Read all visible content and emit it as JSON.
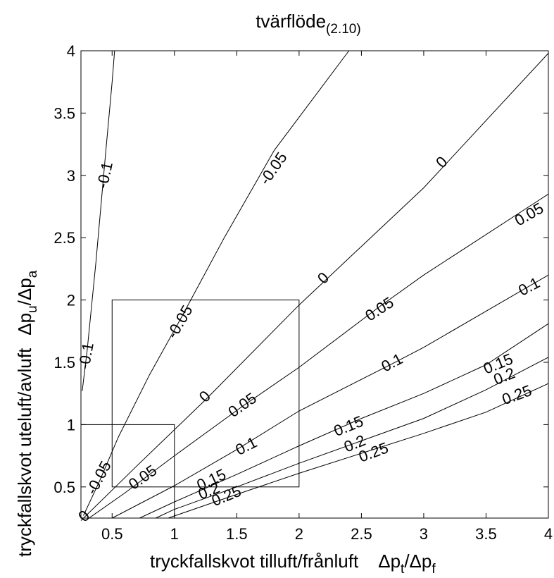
{
  "chart_data": {
    "type": "contour",
    "title": {
      "main": "tvärflöde",
      "sub": "(2.10)"
    },
    "xlabel": {
      "text": "tryckfallskvot tilluft/frånluft",
      "sym_a": "Δp",
      "sub_a": "t",
      "slash": "/",
      "sym_b": "Δp",
      "sub_b": "f"
    },
    "ylabel": {
      "text": "tryckfallskvot uteluft/avluft",
      "sym_a": "Δp",
      "sub_a": "u",
      "slash": "/",
      "sym_b": "Δp",
      "sub_b": "a"
    },
    "xlim": [
      0.25,
      4
    ],
    "ylim": [
      0.25,
      4
    ],
    "xticks": [
      0.5,
      1,
      1.5,
      2,
      2.5,
      3,
      3.5,
      4
    ],
    "xtick_labels": [
      "0.5",
      "1",
      "1.5",
      "2",
      "2.5",
      "3",
      "3.5",
      "4"
    ],
    "yticks": [
      0.5,
      1,
      1.5,
      2,
      2.5,
      3,
      3.5,
      4
    ],
    "ytick_labels": [
      "0.5",
      "1",
      "1.5",
      "2",
      "2.5",
      "3",
      "3.5",
      "4"
    ],
    "grid": false,
    "contours": [
      {
        "level": "-0.1",
        "points": [
          [
            0.26,
            1.27
          ],
          [
            0.3,
            1.6
          ],
          [
            0.37,
            2.3
          ],
          [
            0.45,
            3.2
          ],
          [
            0.5,
            3.75
          ],
          [
            0.52,
            4.0
          ]
        ],
        "labels": [
          {
            "text": "-0.1",
            "x": 0.3,
            "y": 1.55,
            "angle": -80
          },
          {
            "text": "-0.1",
            "x": 0.45,
            "y": 3.0,
            "angle": -78
          }
        ]
      },
      {
        "level": "-0.05",
        "points": [
          [
            0.27,
            0.27
          ],
          [
            0.4,
            0.55
          ],
          [
            0.55,
            0.9
          ],
          [
            0.8,
            1.4
          ],
          [
            1.05,
            1.85
          ],
          [
            1.4,
            2.5
          ],
          [
            1.8,
            3.2
          ],
          [
            2.4,
            4.0
          ]
        ],
        "labels": [
          {
            "text": "-0.05",
            "x": 0.4,
            "y": 0.57,
            "angle": -62
          },
          {
            "text": "-0.05",
            "x": 1.05,
            "y": 1.82,
            "angle": -60
          },
          {
            "text": "-0.05",
            "x": 1.8,
            "y": 3.05,
            "angle": -55
          }
        ]
      },
      {
        "level": "0",
        "points": [
          [
            0.25,
            0.23
          ],
          [
            0.7,
            0.67
          ],
          [
            1.25,
            1.2
          ],
          [
            2.0,
            1.96
          ],
          [
            3.0,
            2.9
          ],
          [
            4.0,
            3.98
          ]
        ],
        "labels": [
          {
            "text": "0",
            "x": 0.28,
            "y": 0.26,
            "angle": -45
          },
          {
            "text": "0",
            "x": 1.25,
            "y": 1.22,
            "angle": -45
          },
          {
            "text": "0",
            "x": 2.2,
            "y": 2.17,
            "angle": -45
          },
          {
            "text": "0",
            "x": 3.15,
            "y": 3.1,
            "angle": -45
          }
        ]
      },
      {
        "level": "0.05",
        "points": [
          [
            0.3,
            0.24
          ],
          [
            0.6,
            0.45
          ],
          [
            1.0,
            0.75
          ],
          [
            1.55,
            1.15
          ],
          [
            2.0,
            1.46
          ],
          [
            2.65,
            1.95
          ],
          [
            3.0,
            2.2
          ],
          [
            4.0,
            2.85
          ]
        ],
        "labels": [
          {
            "text": "0.05",
            "x": 0.75,
            "y": 0.57,
            "angle": -35
          },
          {
            "text": "0.05",
            "x": 1.55,
            "y": 1.15,
            "angle": -35
          },
          {
            "text": "0.05",
            "x": 2.65,
            "y": 1.92,
            "angle": -33
          },
          {
            "text": "0.05",
            "x": 3.85,
            "y": 2.68,
            "angle": -30
          }
        ]
      },
      {
        "level": "0.1",
        "points": [
          [
            0.5,
            0.25
          ],
          [
            1.0,
            0.51
          ],
          [
            1.5,
            0.8
          ],
          [
            2.0,
            1.11
          ],
          [
            2.75,
            1.49
          ],
          [
            3.0,
            1.62
          ],
          [
            4.0,
            2.2
          ]
        ],
        "labels": [
          {
            "text": "0.1",
            "x": 1.58,
            "y": 0.82,
            "angle": -27
          },
          {
            "text": "0.1",
            "x": 2.75,
            "y": 1.49,
            "angle": -28
          },
          {
            "text": "0.1",
            "x": 3.85,
            "y": 2.1,
            "angle": -28
          }
        ]
      },
      {
        "level": "0.15",
        "points": [
          [
            0.72,
            0.25
          ],
          [
            1.0,
            0.38
          ],
          [
            1.5,
            0.6
          ],
          [
            2.0,
            0.83
          ],
          [
            2.5,
            1.05
          ],
          [
            3.0,
            1.25
          ],
          [
            3.5,
            1.48
          ],
          [
            4.0,
            1.81
          ]
        ],
        "labels": [
          {
            "text": "0.15",
            "x": 1.3,
            "y": 0.55,
            "angle": -25
          },
          {
            "text": "0.15",
            "x": 2.4,
            "y": 0.98,
            "angle": -22
          },
          {
            "text": "0.15",
            "x": 3.6,
            "y": 1.48,
            "angle": -22
          }
        ]
      },
      {
        "level": "0.2",
        "points": [
          [
            0.85,
            0.25
          ],
          [
            1.0,
            0.32
          ],
          [
            1.5,
            0.5
          ],
          [
            2.0,
            0.69
          ],
          [
            2.5,
            0.87
          ],
          [
            3.0,
            1.05
          ],
          [
            3.5,
            1.28
          ],
          [
            4.0,
            1.54
          ]
        ],
        "labels": [
          {
            "text": "0.2",
            "x": 1.28,
            "y": 0.46,
            "angle": -22
          },
          {
            "text": "0.2",
            "x": 2.45,
            "y": 0.84,
            "angle": -22
          },
          {
            "text": "0.2",
            "x": 3.65,
            "y": 1.38,
            "angle": -22
          }
        ]
      },
      {
        "level": "0.25",
        "points": [
          [
            0.95,
            0.25
          ],
          [
            1.5,
            0.44
          ],
          [
            2.0,
            0.61
          ],
          [
            2.5,
            0.77
          ],
          [
            3.0,
            0.93
          ],
          [
            3.5,
            1.1
          ],
          [
            4.0,
            1.33
          ]
        ],
        "labels": [
          {
            "text": "0.25",
            "x": 1.42,
            "y": 0.42,
            "angle": -22
          },
          {
            "text": "0.25",
            "x": 2.6,
            "y": 0.77,
            "angle": -20
          },
          {
            "text": "0.25",
            "x": 3.75,
            "y": 1.23,
            "angle": -20
          }
        ]
      }
    ],
    "boxes": [
      {
        "x0": 0.25,
        "x1": 1.0,
        "y0": 0.25,
        "y1": 1.0
      },
      {
        "x0": 0.5,
        "x1": 2.0,
        "y0": 0.5,
        "y1": 2.0
      }
    ]
  }
}
